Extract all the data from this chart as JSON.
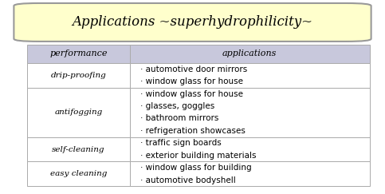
{
  "title": "Applications ~superhydrophilicity~",
  "title_bg": "#ffffcc",
  "title_border": "#999999",
  "fig_bg": "#ffffff",
  "table_header_bg": "#c8c8dc",
  "table_row_bg": "#ffffff",
  "table_border": "#aaaaaa",
  "header": [
    "performance",
    "applications"
  ],
  "rows": [
    {
      "performance": "drip-proofing",
      "applications": [
        "· automotive door mirrors",
        "· window glass for house"
      ]
    },
    {
      "performance": "antifogging",
      "applications": [
        "· window glass for house",
        "· glasses, goggles",
        "· bathroom mirrors",
        "· refrigeration showcases"
      ]
    },
    {
      "performance": "self-cleaning",
      "applications": [
        "· traffic sign boards",
        "· exterior building materials"
      ]
    },
    {
      "performance": "easy cleaning",
      "applications": [
        "· window glass for building",
        "· automotive bodyshell"
      ]
    }
  ],
  "figsize": [
    4.83,
    2.43
  ],
  "dpi": 100
}
